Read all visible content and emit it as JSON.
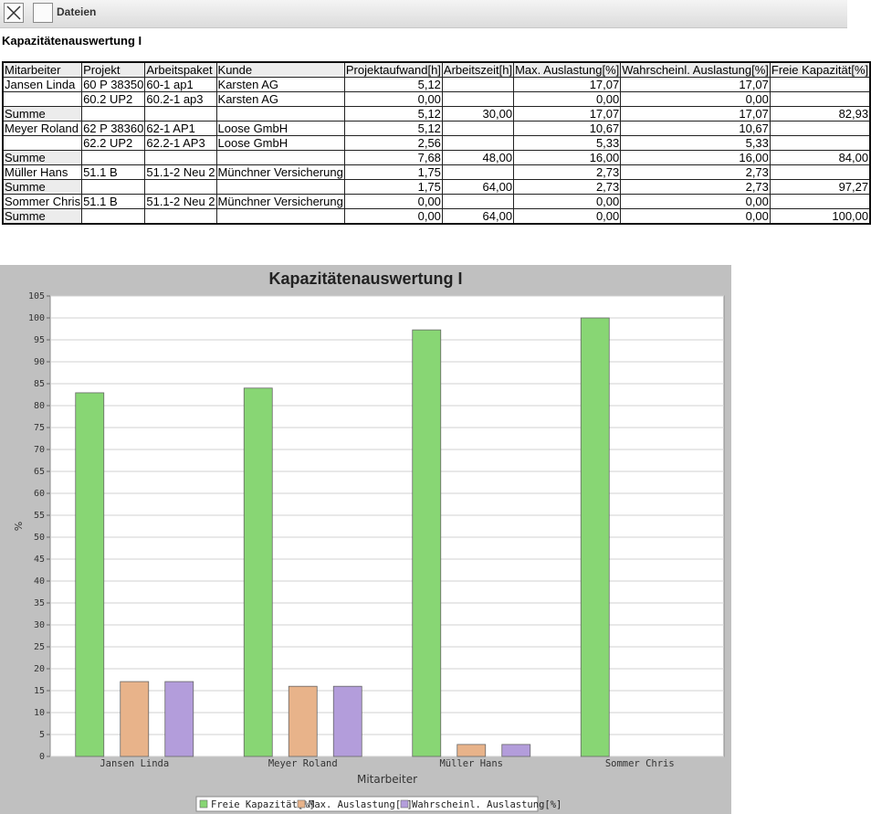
{
  "toolbar": {
    "label": "Dateien"
  },
  "report": {
    "title": "Kapazitätenauswertung I"
  },
  "table": {
    "headers": [
      "Mitarbeiter",
      "Projekt",
      "Arbeitspaket",
      "Kunde",
      "Projektaufwand[h]",
      "Arbeitszeit[h]",
      "Max. Auslastung[%]",
      "Wahrscheinl. Auslastung[%]",
      "Freie Kapazität[%]"
    ],
    "rows": [
      [
        "Jansen Linda",
        "60 P 38350",
        "60-1 ap1",
        "Karsten AG",
        "5,12",
        "",
        "17,07",
        "17,07",
        ""
      ],
      [
        "",
        "60.2 UP2",
        "60.2-1 ap3",
        "Karsten AG",
        "0,00",
        "",
        "0,00",
        "0,00",
        ""
      ],
      [
        "Summe",
        "",
        "",
        "",
        "5,12",
        "30,00",
        "17,07",
        "17,07",
        "82,93"
      ],
      [
        "Meyer Roland",
        "62 P 38360",
        "62-1 AP1",
        "Loose GmbH",
        "5,12",
        "",
        "10,67",
        "10,67",
        ""
      ],
      [
        "",
        "62.2 UP2",
        "62.2-1 AP3",
        "Loose GmbH",
        "2,56",
        "",
        "5,33",
        "5,33",
        ""
      ],
      [
        "Summe",
        "",
        "",
        "",
        "7,68",
        "48,00",
        "16,00",
        "16,00",
        "84,00"
      ],
      [
        "Müller Hans",
        "51.1 B",
        "51.1-2 Neu 2",
        "Münchner Versicherung",
        "1,75",
        "",
        "2,73",
        "2,73",
        ""
      ],
      [
        "Summe",
        "",
        "",
        "",
        "1,75",
        "64,00",
        "2,73",
        "2,73",
        "97,27"
      ],
      [
        "Sommer Chris",
        "51.1 B",
        "51.1-2 Neu 2",
        "Münchner Versicherung",
        "0,00",
        "",
        "0,00",
        "0,00",
        ""
      ],
      [
        "Summe",
        "",
        "",
        "",
        "0,00",
        "64,00",
        "0,00",
        "0,00",
        "100,00"
      ]
    ]
  },
  "colors": {
    "freie": "#88d674",
    "max": "#e8b38a",
    "wahr": "#b39ddb",
    "plot_bg": "#ffffff",
    "panel_bg": "#c0c0c0"
  },
  "chart_data": {
    "type": "bar",
    "title": "Kapazitätenauswertung I",
    "xlabel": "Mitarbeiter",
    "ylabel": "%",
    "ylim": [
      0,
      105
    ],
    "yticks": [
      0,
      5,
      10,
      15,
      20,
      25,
      30,
      35,
      40,
      45,
      50,
      55,
      60,
      65,
      70,
      75,
      80,
      85,
      90,
      95,
      100,
      105
    ],
    "grid": true,
    "legend": "bottom",
    "categories": [
      "Jansen Linda",
      "Meyer Roland",
      "Müller Hans",
      "Sommer Chris"
    ],
    "series": [
      {
        "name": "Freie Kapazität[%]",
        "color": "#88d674",
        "values": [
          82.93,
          84.0,
          97.27,
          100.0
        ]
      },
      {
        "name": "Max. Auslastung[%]",
        "color": "#e8b38a",
        "values": [
          17.07,
          16.0,
          2.73,
          0.0
        ]
      },
      {
        "name": "Wahrscheinl. Auslastung[%]",
        "color": "#b39ddb",
        "values": [
          17.07,
          16.0,
          2.73,
          0.0
        ]
      }
    ]
  }
}
